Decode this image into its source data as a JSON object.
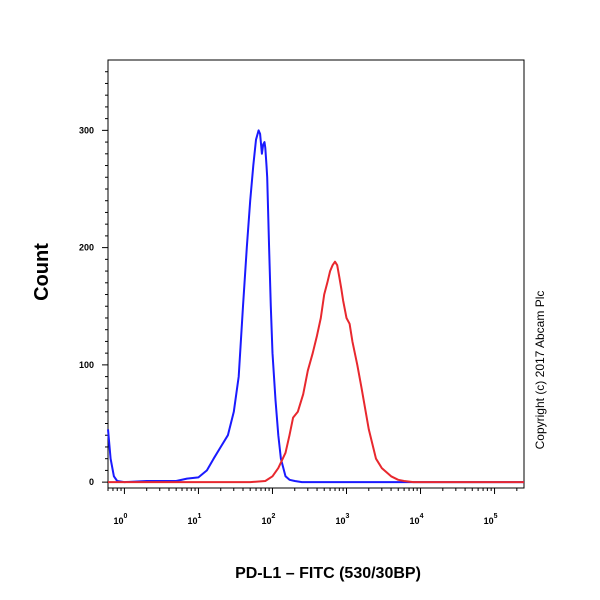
{
  "chart_data": {
    "type": "line",
    "title": "",
    "xlabel": "PD-L1 – FITC (530/30BP)",
    "ylabel": "Count",
    "x_scale": "log",
    "xlim": [
      0.6,
      250000
    ],
    "ylim": [
      -5,
      360
    ],
    "x_ticks": [
      {
        "base": "10",
        "exp": "0",
        "value": 1
      },
      {
        "base": "10",
        "exp": "1",
        "value": 10
      },
      {
        "base": "10",
        "exp": "2",
        "value": 100
      },
      {
        "base": "10",
        "exp": "3",
        "value": 1000
      },
      {
        "base": "10",
        "exp": "4",
        "value": 10000
      },
      {
        "base": "10",
        "exp": "5",
        "value": 100000
      }
    ],
    "y_ticks": [
      {
        "label": "0",
        "value": 0
      },
      {
        "label": "100",
        "value": 100
      },
      {
        "label": "200",
        "value": 200
      },
      {
        "label": "300",
        "value": 300
      }
    ],
    "grid": false,
    "legend": "none",
    "annotation": "Copyright (c) 2017 Abcam Plc",
    "series": [
      {
        "color": "#1a1aff",
        "x": [
          0.6,
          0.65,
          0.72,
          0.8,
          1,
          2,
          5,
          7,
          10,
          13,
          16,
          20,
          25,
          30,
          35,
          40,
          45,
          50,
          55,
          60,
          65,
          68,
          72,
          75,
          78,
          80,
          83,
          85,
          90,
          95,
          100,
          110,
          120,
          130,
          150,
          170,
          200,
          250,
          300,
          500,
          1000,
          10000,
          100000,
          250000
        ],
        "y": [
          45,
          20,
          5,
          1,
          0,
          1,
          1,
          3,
          4,
          10,
          20,
          30,
          40,
          60,
          90,
          150,
          200,
          240,
          270,
          292,
          300,
          297,
          280,
          288,
          290,
          285,
          270,
          260,
          200,
          150,
          110,
          70,
          40,
          20,
          5,
          2,
          1,
          0,
          0,
          0,
          0,
          0,
          0,
          0
        ]
      },
      {
        "color": "#e8282e",
        "x": [
          0.6,
          10,
          50,
          80,
          100,
          120,
          150,
          170,
          190,
          220,
          260,
          300,
          350,
          400,
          450,
          500,
          550,
          600,
          650,
          700,
          750,
          800,
          850,
          900,
          1000,
          1100,
          1200,
          1400,
          1600,
          2000,
          2500,
          3000,
          4000,
          5000,
          6000,
          8000,
          10000,
          100000,
          250000
        ],
        "y": [
          0,
          0,
          0,
          1,
          5,
          12,
          25,
          40,
          55,
          60,
          75,
          95,
          110,
          125,
          140,
          160,
          170,
          180,
          185,
          188,
          185,
          175,
          165,
          155,
          140,
          135,
          120,
          100,
          80,
          45,
          20,
          12,
          5,
          2,
          1,
          0,
          0,
          0,
          0
        ]
      }
    ]
  }
}
